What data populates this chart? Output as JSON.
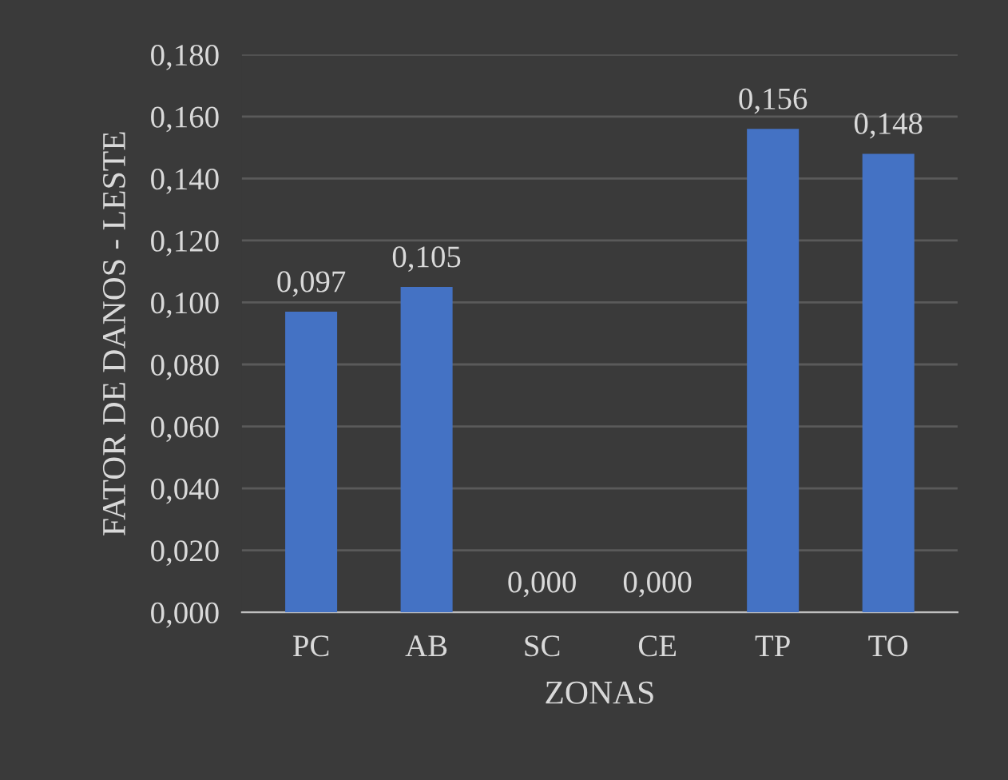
{
  "chart_data": {
    "type": "bar",
    "xlabel": "ZONAS",
    "ylabel": "FATOR DE DANOS - LESTE",
    "categories": [
      "PC",
      "AB",
      "SC",
      "CE",
      "TP",
      "TO"
    ],
    "values": [
      0.097,
      0.105,
      0.0,
      0.0,
      0.156,
      0.148
    ],
    "value_labels": [
      "0,097",
      "0,105",
      "0,000",
      "0,000",
      "0,156",
      "0,148"
    ],
    "color": "#4472c4",
    "ylim": [
      0,
      0.18
    ],
    "yticks": [
      {
        "value": 0,
        "label": "0,000"
      },
      {
        "value": 0.02,
        "label": "0,020"
      },
      {
        "value": 0.04,
        "label": "0,040"
      },
      {
        "value": 0.06,
        "label": "0,060"
      },
      {
        "value": 0.08,
        "label": "0,080"
      },
      {
        "value": 0.1,
        "label": "0,100"
      },
      {
        "value": 0.12,
        "label": "0,120"
      },
      {
        "value": 0.14,
        "label": "0,140"
      },
      {
        "value": 0.16,
        "label": "0,160"
      },
      {
        "value": 0.18,
        "label": "0,180"
      }
    ],
    "grid": "y",
    "legend": false
  }
}
